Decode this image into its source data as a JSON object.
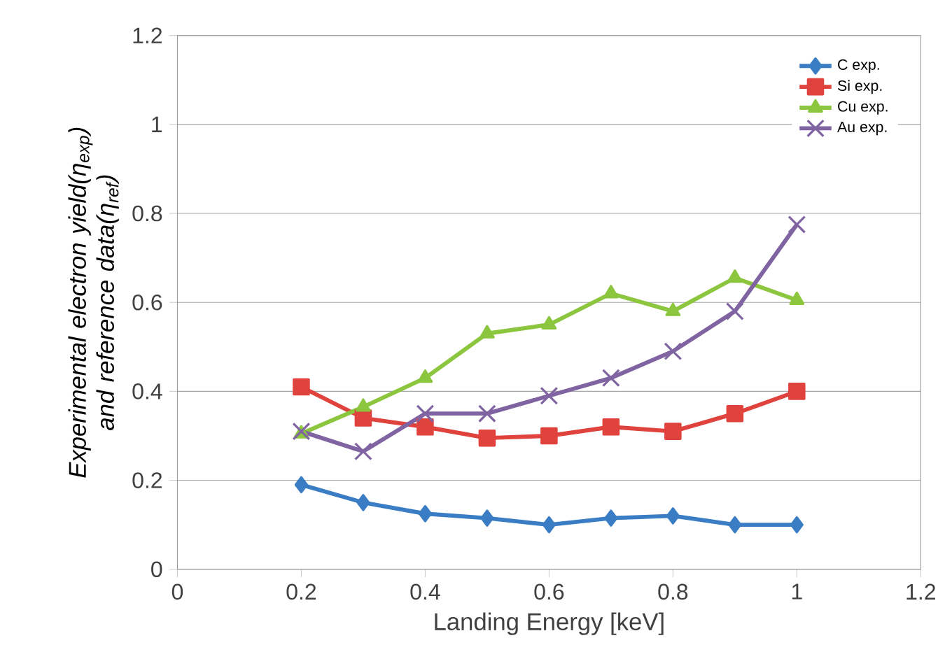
{
  "chart_data": {
    "type": "line",
    "xlabel": "Landing Energy [keV]",
    "ylabel": "Experimental electron yield(η$_{exp}$) and reference data(η$_{ref}$)",
    "x": [
      0.2,
      0.3,
      0.4,
      0.5,
      0.6,
      0.7,
      0.8,
      0.9,
      1.0
    ],
    "series": [
      {
        "name": "C exp.",
        "color": "#3a7dc4",
        "marker": "diamond",
        "values": [
          0.19,
          0.15,
          0.125,
          0.115,
          0.1,
          0.115,
          0.12,
          0.1,
          0.1
        ]
      },
      {
        "name": "Si exp.",
        "color": "#e0433d",
        "marker": "square",
        "values": [
          0.41,
          0.34,
          0.32,
          0.295,
          0.3,
          0.32,
          0.31,
          0.35,
          0.4
        ]
      },
      {
        "name": "Cu exp.",
        "color": "#8cc63f",
        "marker": "triangle",
        "values": [
          0.305,
          0.365,
          0.43,
          0.53,
          0.55,
          0.62,
          0.58,
          0.655,
          0.605
        ]
      },
      {
        "name": "Au exp.",
        "color": "#8064a2",
        "marker": "cross",
        "values": [
          0.31,
          0.265,
          0.35,
          0.35,
          0.39,
          0.43,
          0.49,
          0.58,
          0.775
        ]
      }
    ],
    "xlim": [
      0,
      1.2
    ],
    "ylim": [
      0,
      1.2
    ],
    "xticks": [
      0,
      0.2,
      0.4,
      0.6,
      0.8,
      1,
      1.2
    ],
    "yticks": [
      0,
      0.2,
      0.4,
      0.6,
      0.8,
      1,
      1.2
    ],
    "grid": "y",
    "legend": "top right",
    "line_style": "solid"
  }
}
